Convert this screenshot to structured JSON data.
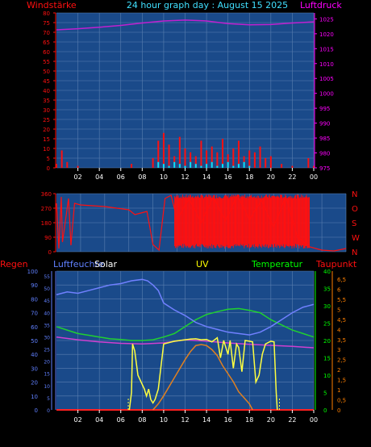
{
  "header": {
    "title": "24 hour graph day : August 15 2025",
    "left_label": "Windstärke",
    "right_label": "Luftdruck"
  },
  "colors": {
    "plot_bg": "#1a4a8a",
    "grid": "#5a7fb0",
    "wind": "#ff1010",
    "gust": "#00e5ff",
    "pressure": "#c020d0",
    "humidity": "#7080ff",
    "temperature": "#20d030",
    "dewpoint": "#d040d0",
    "solar": "#ffff40",
    "uv": "#e08020",
    "rain": "#ff2020",
    "title": "#40e0ff",
    "label_red": "#ff1010",
    "label_magenta": "#ff00ff",
    "label_blue": "#6080ff",
    "label_green": "#00ff00",
    "label_yellow": "#ffff00",
    "label_orange": "#ff8000",
    "label_white": "#ffffff"
  },
  "x_ticks": [
    "02",
    "04",
    "06",
    "08",
    "10",
    "12",
    "14",
    "16",
    "18",
    "20",
    "22",
    "00"
  ],
  "chart_data": [
    {
      "type": "line",
      "name": "wind-pressure",
      "y_left": {
        "label": "Windstärke",
        "ticks": [
          "0",
          "5",
          "10",
          "15",
          "20",
          "25",
          "30",
          "35",
          "40",
          "45",
          "50",
          "55",
          "60",
          "65",
          "70",
          "75",
          "80"
        ],
        "range": [
          0,
          80
        ]
      },
      "y_right": {
        "label": "Luftdruck",
        "ticks": [
          "975",
          "980",
          "985",
          "990",
          "995",
          "1000",
          "1005",
          "1010",
          "1015",
          "1020",
          "1025"
        ],
        "range": [
          975,
          1027
        ]
      },
      "series": [
        {
          "key": "wind",
          "axis": "left",
          "x": [
            0,
            0.5,
            1,
            1.5,
            2,
            3,
            4,
            5,
            6,
            7,
            8,
            9,
            9.5,
            10,
            10.5,
            11,
            11.5,
            12,
            12.5,
            13,
            13.5,
            14,
            14.5,
            15,
            15.5,
            16,
            16.5,
            17,
            17.5,
            18,
            18.5,
            19,
            19.5,
            20,
            21,
            22,
            23,
            23.5,
            24
          ],
          "y": [
            2,
            9,
            3,
            0,
            1,
            0,
            0,
            0,
            0,
            2,
            0,
            5,
            14,
            18,
            12,
            6,
            16,
            10,
            8,
            6,
            14,
            9,
            11,
            8,
            15,
            7,
            10,
            14,
            6,
            9,
            8,
            11,
            5,
            6,
            2,
            1,
            0,
            5,
            1
          ]
        },
        {
          "key": "gust",
          "axis": "left",
          "x": [
            0,
            9,
            9.5,
            10,
            10.5,
            11,
            11.5,
            12,
            12.5,
            13,
            13.5,
            14,
            14.5,
            15,
            15.5,
            16,
            16.5,
            17,
            17.5,
            18,
            19,
            24
          ],
          "y": [
            0,
            0,
            3,
            2,
            1,
            3,
            2,
            1,
            3,
            2,
            1,
            2,
            3,
            1,
            2,
            3,
            1,
            2,
            3,
            1,
            0,
            0
          ]
        },
        {
          "key": "pressure",
          "axis": "right",
          "x": [
            0,
            2,
            4,
            6,
            8,
            10,
            12,
            14,
            16,
            18,
            20,
            22,
            24
          ],
          "y": [
            1021.3,
            1021.7,
            1022.2,
            1022.8,
            1023.6,
            1024.3,
            1024.6,
            1024.3,
            1023.4,
            1023.0,
            1023.1,
            1023.6,
            1024.0
          ]
        }
      ]
    },
    {
      "type": "line",
      "name": "wind-direction",
      "y_left": {
        "ticks": [
          "0",
          "90",
          "180",
          "270",
          "360"
        ],
        "range": [
          0,
          360
        ]
      },
      "y_right": {
        "ticks": [
          "N",
          "W",
          "S",
          "O",
          "N"
        ]
      },
      "series": [
        {
          "key": "direction",
          "x": [
            0,
            0.2,
            0.4,
            0.5,
            1,
            1.2,
            1.5,
            2,
            3,
            4,
            5,
            6,
            6.5,
            7,
            7.5,
            8,
            8.5,
            9,
            9.5,
            10,
            11,
            12,
            13,
            14,
            15,
            16,
            17,
            18,
            19,
            20,
            21,
            22,
            23,
            24
          ],
          "y": [
            300,
            20,
            340,
            60,
            330,
            40,
            300,
            290,
            285,
            280,
            270,
            260,
            230,
            240,
            250,
            45,
            10,
            330,
            350,
            200,
            330,
            180,
            340,
            190,
            350,
            200,
            320,
            150,
            340,
            90,
            30,
            10,
            5,
            20
          ]
        }
      ]
    },
    {
      "type": "line",
      "name": "weather",
      "labels": {
        "rain": "Regen",
        "humidity": "Luftfeuchte",
        "solar": "Solar",
        "uv": "UV",
        "temperature": "Temperatur",
        "dewpoint": "Taupunkt"
      },
      "y_humidity": {
        "ticks": [
          "0",
          "10",
          "20",
          "30",
          "40",
          "50",
          "60",
          "70",
          "80",
          "90",
          "100"
        ],
        "range": [
          0,
          100
        ]
      },
      "y_rain": {
        "ticks": [
          "0",
          "5",
          "10",
          "15",
          "20",
          "25",
          "30",
          "35",
          "40",
          "45",
          "50",
          "55"
        ],
        "range": [
          0,
          57
        ]
      },
      "y_temperature": {
        "ticks": [
          "0",
          "5",
          "10",
          "15",
          "20",
          "25",
          "30",
          "35",
          "40"
        ],
        "range": [
          0,
          40
        ]
      },
      "y_uv": {
        "ticks": [
          "0",
          "0,5",
          "1",
          "1,5",
          "2",
          "2,5",
          "3",
          "3,5",
          "4",
          "4,5",
          "5",
          "5,5",
          "6",
          "6,5"
        ],
        "range": [
          0,
          6.9
        ]
      },
      "series": [
        {
          "key": "humidity",
          "x": [
            0,
            0.5,
            1,
            2,
            3,
            4,
            5,
            6,
            7,
            8,
            8.5,
            9,
            9.5,
            10,
            11,
            12,
            13,
            14,
            15,
            16,
            17,
            18,
            19,
            20,
            21,
            22,
            23,
            24
          ],
          "y": [
            83,
            84,
            85,
            84,
            86,
            88,
            90,
            91,
            93,
            94,
            93,
            90,
            86,
            77,
            72,
            68,
            63,
            60,
            58,
            56,
            55,
            54,
            56,
            60,
            65,
            70,
            74,
            76
          ]
        },
        {
          "key": "temperature",
          "x": [
            0,
            1,
            2,
            3,
            4,
            5,
            6,
            7,
            8,
            9,
            10,
            11,
            12,
            13,
            14,
            15,
            16,
            17,
            18,
            19,
            20,
            21,
            22,
            23,
            24
          ],
          "y": [
            24,
            23,
            22,
            21.5,
            21,
            20.5,
            20.3,
            20,
            20,
            20.2,
            21,
            22,
            24,
            26,
            27.5,
            28.3,
            29,
            29.2,
            28.7,
            28,
            26,
            24.5,
            23,
            22,
            21
          ]
        },
        {
          "key": "dewpoint",
          "x": [
            0,
            2,
            4,
            6,
            8,
            10,
            12,
            14,
            16,
            18,
            20,
            22,
            24
          ],
          "y": [
            21,
            20.2,
            19.6,
            19.2,
            19.0,
            19.3,
            20.2,
            19.8,
            19.3,
            18.9,
            18.6,
            18.3,
            17.9
          ]
        },
        {
          "key": "solar",
          "x": [
            6.8,
            7,
            7.1,
            7.3,
            7.6,
            7.9,
            8.2,
            8.4,
            8.6,
            8.8,
            9,
            9.2,
            9.5,
            10,
            11,
            12,
            12.5,
            13,
            13.5,
            14,
            14.5,
            15,
            15.3,
            15.6,
            16,
            16.2,
            16.5,
            16.8,
            17,
            17.3,
            17.6,
            18,
            18.3,
            18.6,
            18.9,
            19.2,
            19.5,
            20,
            20.3,
            20.5,
            20.6
          ],
          "y": [
            0,
            5,
            19,
            17,
            10,
            8,
            6,
            4,
            6,
            3,
            2,
            3,
            6,
            19,
            19.8,
            20.2,
            20.4,
            20.5,
            20.2,
            20.3,
            19.6,
            20.8,
            15,
            20,
            16,
            20,
            12,
            19,
            18,
            11,
            20,
            19.8,
            19.6,
            8,
            10,
            16,
            19,
            19.8,
            19.6,
            5,
            0
          ]
        },
        {
          "key": "uv",
          "x": [
            9,
            9.5,
            10,
            11,
            12,
            12.5,
            13,
            13.5,
            14,
            14.5,
            15,
            15.5,
            16,
            16.5,
            17,
            17.5,
            18,
            18.3
          ],
          "y": [
            0,
            0.3,
            0.7,
            1.6,
            2.5,
            2.9,
            3.2,
            3.25,
            3.2,
            3.0,
            2.7,
            2.2,
            1.8,
            1.4,
            0.9,
            0.6,
            0.3,
            0
          ]
        },
        {
          "key": "rain",
          "x": [
            0,
            24
          ],
          "y": [
            0,
            0
          ]
        }
      ]
    }
  ]
}
